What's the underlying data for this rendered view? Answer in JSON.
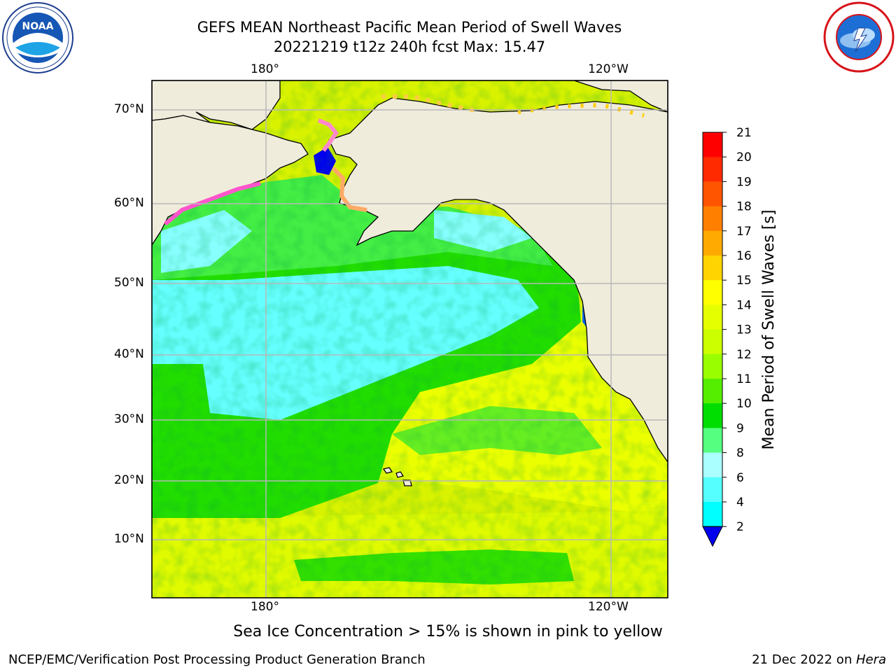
{
  "header": {
    "title_line1": "GEFS MEAN Northeast Pacific Mean Period of Swell Waves",
    "title_line2": "20221219 t12z 240h fcst   Max: 15.47"
  },
  "logos": {
    "left": {
      "icon": "noaa-logo",
      "text": "NOAA"
    },
    "right": {
      "icon": "national-weather-service-logo"
    }
  },
  "map": {
    "lon_labels_top": [
      "180°",
      "120°W"
    ],
    "lon_labels_bottom": [
      "180°",
      "120°W"
    ],
    "lat_labels": [
      "70°N",
      "60°N",
      "50°N",
      "40°N",
      "30°N",
      "20°N",
      "10°N"
    ],
    "land_color": "#efecdc",
    "grid_color": "#b8b8b8"
  },
  "colorbar": {
    "label": "Mean Period of Swell Waves [s]",
    "ticks": [
      "21",
      "20",
      "19",
      "18",
      "17",
      "16",
      "15",
      "14",
      "13",
      "12",
      "11",
      "10",
      "9",
      "8",
      "6",
      "4",
      "2"
    ],
    "colors": [
      "#ff0000",
      "#ff2a00",
      "#ff5500",
      "#ff8000",
      "#ffaa00",
      "#ffd400",
      "#ffff00",
      "#e6ff00",
      "#ccff00",
      "#99ff00",
      "#55ee00",
      "#00dd00",
      "#55ff80",
      "#aaffff",
      "#55ffff",
      "#00ffff",
      "#0099ff",
      "#0055ff",
      "#0000ee"
    ]
  },
  "footer": {
    "ice_note": "Sea Ice Concentration > 15% is shown in pink to yellow",
    "left": "NCEP/EMC/Verification Post Processing Product Generation Branch",
    "right_date": "21 Dec 2022 on ",
    "right_host": "Hera"
  }
}
